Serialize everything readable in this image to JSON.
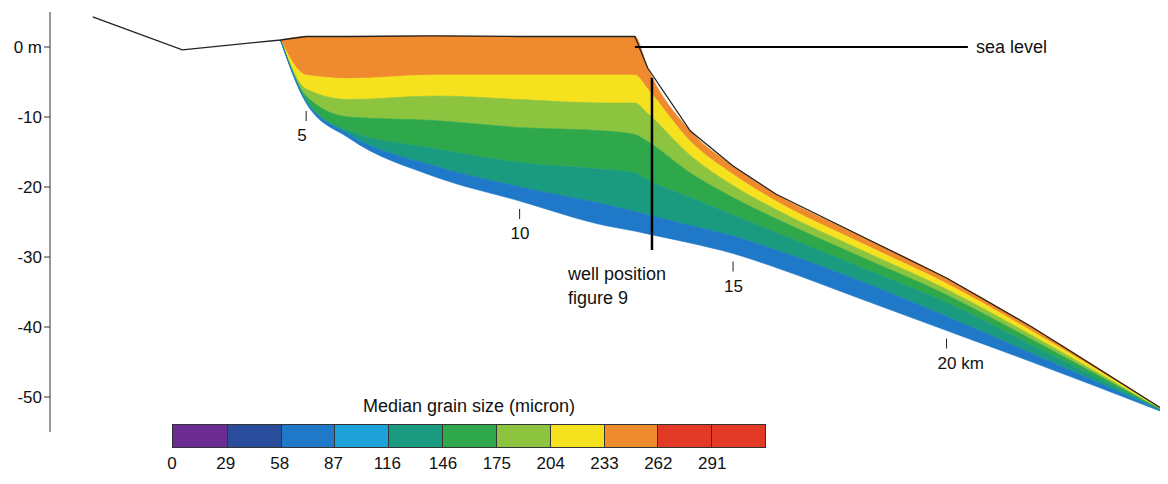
{
  "chart_data": {
    "type": "cross_section",
    "tick_labels": "y",
    "xlim": [
      -1,
      25
    ],
    "ylim": [
      -55,
      5
    ],
    "yticks": [
      {
        "value": 0,
        "label": "0 m"
      },
      -10,
      -20,
      -30,
      -40,
      -50
    ],
    "x": [
      0,
      2.1,
      4.4,
      5,
      6,
      8,
      10,
      12,
      12.7,
      13,
      14,
      15,
      16,
      18,
      20,
      22,
      25
    ],
    "surface": [
      4.3,
      -0.4,
      1.0,
      1.5,
      1.5,
      1.6,
      1.5,
      1.5,
      1.5,
      -3,
      -12,
      -17,
      -21,
      -27,
      -33,
      -40,
      -51.5
    ],
    "layers": [
      {
        "grain_size": 250,
        "bottom": [
          null,
          null,
          1.0,
          -4,
          -4.5,
          -4,
          -4,
          -4,
          -4,
          -6,
          -13.5,
          -18.2,
          -22,
          -28,
          -33.8,
          -40.6,
          -51.6
        ]
      },
      {
        "grain_size": 220,
        "bottom": [
          null,
          null,
          1.0,
          -6,
          -7.5,
          -7,
          -7.5,
          -8,
          -8,
          -9.5,
          -15.5,
          -19.8,
          -23.2,
          -29,
          -34.6,
          -41.2,
          -51.7
        ]
      },
      {
        "grain_size": 190,
        "bottom": [
          null,
          null,
          1.0,
          -7,
          -10,
          -10.5,
          -11.5,
          -12,
          -12.5,
          -13.5,
          -18,
          -21.5,
          -24.5,
          -30,
          -35.4,
          -41.8,
          -51.75
        ]
      },
      {
        "grain_size": 160,
        "bottom": [
          null,
          null,
          1.0,
          -7.5,
          -12,
          -14.5,
          -16.5,
          -17.5,
          -18,
          -19,
          -21.5,
          -24,
          -26.5,
          -31.5,
          -36.5,
          -42.6,
          -51.8
        ]
      },
      {
        "grain_size": 130,
        "bottom": [
          null,
          null,
          1.0,
          -7.8,
          -12.5,
          -17,
          -20,
          -22.5,
          -23.5,
          -24,
          -25.5,
          -27,
          -29,
          -33.5,
          -38.5,
          -43.8,
          -51.9
        ]
      },
      {
        "grain_size": 80,
        "bottom": [
          null,
          null,
          1.0,
          -8,
          -13,
          -18.5,
          -22,
          -25.5,
          -26.3,
          -26.7,
          -28,
          -29.5,
          -31.5,
          -36,
          -40.5,
          -45,
          -52
        ]
      }
    ],
    "distance_labels": [
      {
        "x": 5,
        "label": "5"
      },
      {
        "x": 10,
        "label": "10"
      },
      {
        "x": 15,
        "label": "15"
      },
      {
        "x": 20,
        "label": "20 km"
      }
    ],
    "annotations": {
      "sea_level": {
        "text": "sea level",
        "x": [
          12.7,
          20.5
        ],
        "y": 0
      },
      "well": {
        "text": [
          "well position",
          "figure 9"
        ],
        "x": 13.1,
        "y": [
          -4.4,
          -29
        ]
      }
    },
    "colorbar": {
      "title": "Median grain size (micron)",
      "range": [
        0,
        320
      ],
      "ticks": [
        0,
        29,
        58,
        87,
        116,
        146,
        175,
        204,
        233,
        262,
        291
      ],
      "colors": [
        "#6a2c91",
        "#2a4d9b",
        "#1f78c8",
        "#1ea0d8",
        "#1a9a7f",
        "#2ea84a",
        "#8cc43f",
        "#f5e11d",
        "#ef8a2e",
        "#e23a27",
        "#e23a27"
      ]
    }
  }
}
